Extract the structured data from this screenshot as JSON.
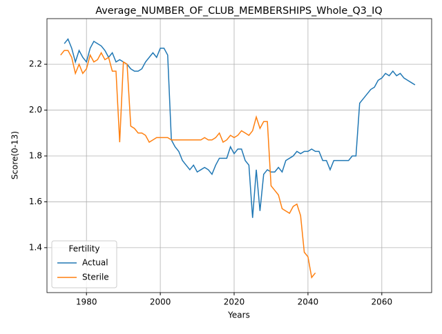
{
  "chart_data": {
    "type": "line",
    "title": "Average_NUMBER_OF_CLUB_MEMBERSHIPS_Whole_Q3_IQ",
    "xlabel": "Years",
    "ylabel": "Score(0-13)",
    "x": [
      1973,
      1974,
      1975,
      1976,
      1977,
      1978,
      1979,
      1980,
      1981,
      1982,
      1983,
      1984,
      1985,
      1986,
      1987,
      1988,
      1989,
      1990,
      1991,
      1992,
      1993,
      1994,
      1995,
      1996,
      1997,
      1998,
      1999,
      2000,
      2001,
      2002,
      2003,
      2004,
      2005,
      2006,
      2007,
      2008,
      2009,
      2010,
      2011,
      2012,
      2013,
      2014,
      2015,
      2016,
      2017,
      2018,
      2019,
      2020,
      2021,
      2022,
      2023,
      2024,
      2025,
      2026,
      2027,
      2028,
      2029,
      2030,
      2031,
      2032,
      2033,
      2034,
      2035,
      2036,
      2037,
      2038,
      2039,
      2040,
      2041,
      2042,
      2043,
      2044,
      2045,
      2046,
      2047,
      2048,
      2049,
      2050,
      2051,
      2052,
      2053,
      2054,
      2055,
      2056,
      2057,
      2058,
      2059,
      2060,
      2061,
      2062,
      2063,
      2064,
      2065,
      2066,
      2067,
      2068,
      2069
    ],
    "series": [
      {
        "name": "Actual",
        "color": "#1f77b4",
        "values": [
          null,
          2.29,
          2.31,
          2.27,
          2.21,
          2.26,
          2.23,
          2.21,
          2.27,
          2.3,
          2.29,
          2.28,
          2.26,
          2.23,
          2.25,
          2.21,
          2.22,
          2.21,
          2.2,
          2.18,
          2.17,
          2.17,
          2.18,
          2.21,
          2.23,
          2.25,
          2.23,
          2.27,
          2.27,
          2.24,
          1.87,
          1.84,
          1.82,
          1.78,
          1.76,
          1.74,
          1.76,
          1.73,
          1.74,
          1.75,
          1.74,
          1.72,
          1.76,
          1.79,
          1.79,
          1.79,
          1.84,
          1.81,
          1.83,
          1.83,
          1.78,
          1.76,
          1.53,
          1.74,
          1.56,
          1.72,
          1.74,
          1.73,
          1.73,
          1.75,
          1.73,
          1.78,
          1.79,
          1.8,
          1.82,
          1.81,
          1.82,
          1.82,
          1.83,
          1.82,
          1.82,
          1.78,
          1.78,
          1.74,
          1.78,
          1.78,
          1.78,
          1.78,
          1.78,
          1.8,
          1.8,
          2.03,
          2.05,
          2.07,
          2.09,
          2.1,
          2.13,
          2.14,
          2.16,
          2.15,
          2.17,
          2.15,
          2.16,
          2.14,
          2.13,
          2.12,
          2.11
        ]
      },
      {
        "name": "Sterile",
        "color": "#ff7f0e",
        "values": [
          2.24,
          2.26,
          2.26,
          2.23,
          2.16,
          2.2,
          2.16,
          2.18,
          2.24,
          2.21,
          2.22,
          2.25,
          2.22,
          2.23,
          2.17,
          2.17,
          1.86,
          2.21,
          2.2,
          1.93,
          1.92,
          1.9,
          1.9,
          1.89,
          1.86,
          1.87,
          1.88,
          1.88,
          1.88,
          1.88,
          1.87,
          1.87,
          1.87,
          1.87,
          1.87,
          1.87,
          1.87,
          1.87,
          1.87,
          1.88,
          1.87,
          1.87,
          1.88,
          1.9,
          1.86,
          1.87,
          1.89,
          1.88,
          1.89,
          1.91,
          1.9,
          1.89,
          1.91,
          1.97,
          1.92,
          1.95,
          1.95,
          1.67,
          1.65,
          1.63,
          1.57,
          1.56,
          1.55,
          1.58,
          1.59,
          1.54,
          1.38,
          1.36,
          1.27,
          1.29,
          null,
          null,
          null,
          null,
          null,
          null,
          null,
          null,
          null,
          null,
          null,
          null,
          null,
          null,
          null,
          null,
          null,
          null,
          null,
          null,
          null,
          null,
          null,
          null,
          null,
          null,
          null
        ]
      }
    ],
    "xlim": [
      1969.3,
      2073.5
    ],
    "ylim": [
      1.204,
      2.399
    ],
    "xticks": [
      1980,
      2000,
      2020,
      2040,
      2060
    ],
    "yticks": [
      1.4,
      1.6,
      1.8,
      {
        "value": 2,
        "label": "2.0"
      },
      2.2
    ],
    "grid": true,
    "legend": {
      "title": "Fertility",
      "loc": "lower left"
    }
  }
}
